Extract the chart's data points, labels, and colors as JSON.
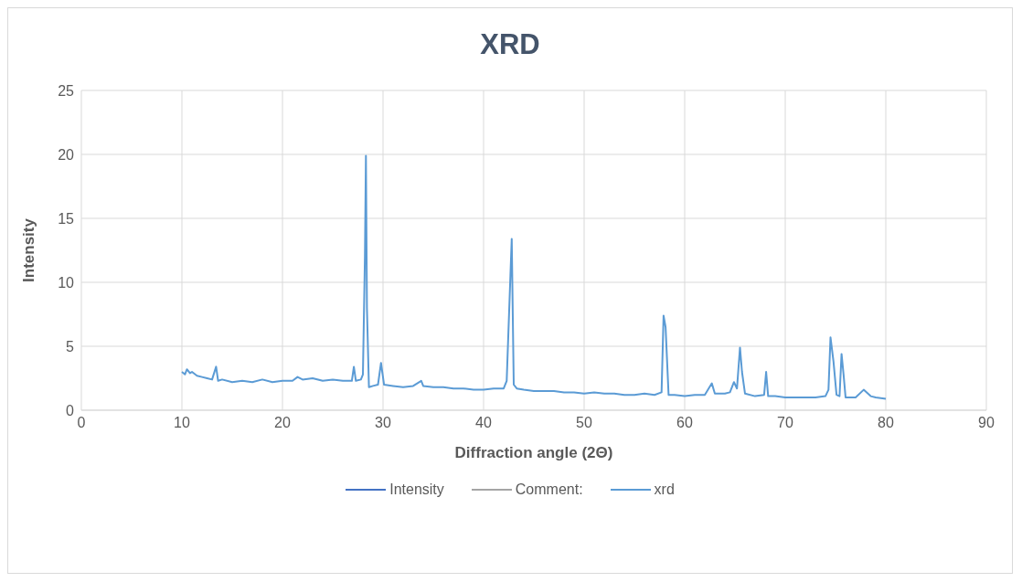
{
  "chart_data": {
    "type": "line",
    "title": "XRD",
    "xlabel": "Diffraction angle (2Θ)",
    "ylabel": "Intensity",
    "xlim": [
      0,
      90
    ],
    "xticks": [
      0,
      10,
      20,
      30,
      40,
      50,
      60,
      70,
      80,
      90
    ],
    "ylim": [
      0,
      25
    ],
    "yticks": [
      0,
      5,
      10,
      15,
      20,
      25
    ],
    "grid": true,
    "legend": "bottom",
    "marker": "none",
    "line_style": "solid",
    "series": [
      {
        "name": "Intensity",
        "color": "#4472c4"
      },
      {
        "name": "Comment:",
        "color": "#a5a5a5"
      },
      {
        "name": "xrd",
        "color": "#5b9bd5",
        "x": [
          10,
          10.3,
          10.5,
          10.8,
          11,
          11.5,
          12,
          12.5,
          13,
          13.4,
          13.6,
          14,
          15,
          16,
          17,
          18,
          19,
          20,
          21,
          21.5,
          22,
          23,
          24,
          25,
          26,
          26.9,
          27.1,
          27.3,
          27.8,
          28.0,
          28.2,
          28.3,
          28.4,
          28.6,
          29,
          29.5,
          29.8,
          30.1,
          31,
          32,
          33,
          33.8,
          34,
          35,
          36,
          37,
          38,
          39,
          40,
          41,
          42,
          42.3,
          42.6,
          42.8,
          43.0,
          43.3,
          44,
          45,
          46,
          47,
          48,
          49,
          50,
          51,
          52,
          53,
          54,
          55,
          56,
          57,
          57.7,
          57.9,
          58.1,
          58.4,
          59,
          60,
          61,
          62,
          62.7,
          63.0,
          64,
          64.5,
          64.9,
          65.2,
          65.5,
          65.7,
          66,
          67,
          67.9,
          68.1,
          68.3,
          69,
          70,
          71,
          72,
          73,
          74,
          74.3,
          74.5,
          74.8,
          75.1,
          75.4,
          75.6,
          75.8,
          76,
          77,
          77.8,
          78.5,
          79,
          80
        ],
        "values": [
          3.0,
          2.8,
          3.2,
          2.9,
          3.0,
          2.7,
          2.6,
          2.5,
          2.4,
          3.4,
          2.3,
          2.4,
          2.2,
          2.3,
          2.2,
          2.4,
          2.2,
          2.3,
          2.3,
          2.6,
          2.4,
          2.5,
          2.3,
          2.4,
          2.3,
          2.3,
          3.4,
          2.3,
          2.4,
          2.8,
          12,
          19.9,
          8,
          1.8,
          1.9,
          2.0,
          3.7,
          2.0,
          1.9,
          1.8,
          1.9,
          2.3,
          1.9,
          1.8,
          1.8,
          1.7,
          1.7,
          1.6,
          1.6,
          1.7,
          1.7,
          2.3,
          9,
          13.4,
          2.0,
          1.7,
          1.6,
          1.5,
          1.5,
          1.5,
          1.4,
          1.4,
          1.3,
          1.4,
          1.3,
          1.3,
          1.2,
          1.2,
          1.3,
          1.2,
          1.4,
          7.4,
          6.5,
          1.2,
          1.2,
          1.1,
          1.2,
          1.2,
          2.1,
          1.3,
          1.3,
          1.4,
          2.2,
          1.7,
          4.9,
          3.0,
          1.3,
          1.1,
          1.2,
          3.0,
          1.1,
          1.1,
          1.0,
          1.0,
          1.0,
          1.0,
          1.1,
          1.6,
          5.7,
          3.8,
          1.2,
          1.1,
          4.4,
          2.8,
          1.0,
          1.0,
          1.6,
          1.1,
          1.0,
          0.9
        ]
      }
    ]
  }
}
